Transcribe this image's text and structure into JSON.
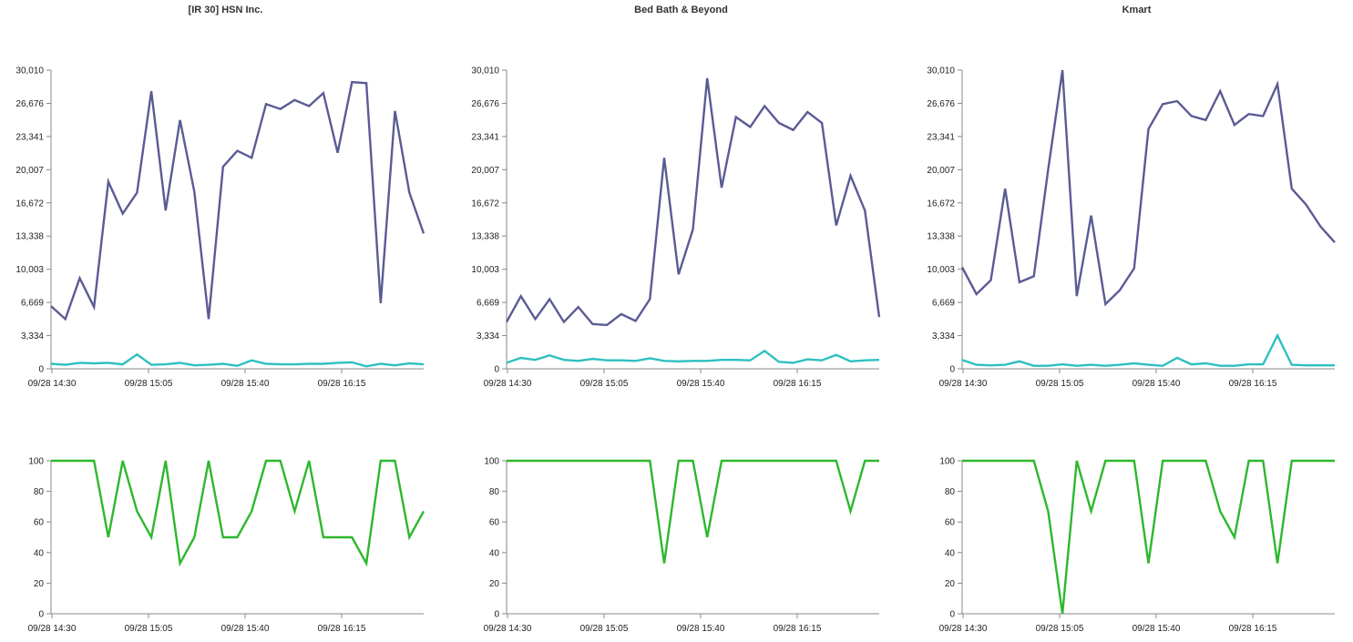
{
  "chart_data": [
    {
      "title": "[IR 30] HSN Inc.",
      "type": "line",
      "x_ticks": [
        "09/28 14:30",
        "09/28 15:05",
        "09/28 15:40",
        "09/28 16:15"
      ],
      "top": {
        "ylim": [
          0,
          30010
        ],
        "y_ticks": [
          "0",
          "3,334",
          "6,669",
          "10,003",
          "13,338",
          "16,672",
          "20,007",
          "23,341",
          "26,676",
          "30,010"
        ],
        "series": [
          {
            "color": "#5b5b95",
            "values": [
              6300,
              5000,
              9100,
              6200,
              18800,
              15600,
              17700,
              27900,
              15900,
              25000,
              17800,
              5000,
              20300,
              21900,
              21200,
              26600,
              26100,
              27000,
              26400,
              27700,
              21700,
              28800,
              28700,
              6600,
              25900,
              17700,
              13600
            ]
          },
          {
            "color": "#2fbfbf",
            "values": [
              500,
              400,
              600,
              550,
              600,
              450,
              1450,
              400,
              450,
              600,
              350,
              400,
              500,
              300,
              850,
              500,
              450,
              450,
              500,
              500,
              600,
              650,
              250,
              500,
              350,
              550,
              450
            ]
          }
        ]
      },
      "bottom": {
        "ylim": [
          0,
          100
        ],
        "y_ticks": [
          "0",
          "20",
          "40",
          "60",
          "80",
          "100"
        ],
        "series": [
          {
            "color": "#2db82d",
            "values": [
              100,
              100,
              100,
              100,
              50,
              100,
              67,
              50,
              100,
              33,
              50,
              100,
              50,
              50,
              67,
              100,
              100,
              67,
              100,
              50,
              50,
              50,
              33,
              100,
              100,
              50,
              67
            ]
          }
        ]
      }
    },
    {
      "title": "Bed Bath & Beyond",
      "type": "line",
      "x_ticks": [
        "09/28 14:30",
        "09/28 15:05",
        "09/28 15:40",
        "09/28 16:15"
      ],
      "top": {
        "ylim": [
          0,
          30010
        ],
        "y_ticks": [
          "0",
          "3,334",
          "6,669",
          "10,003",
          "13,338",
          "16,672",
          "20,007",
          "23,341",
          "26,676",
          "30,010"
        ],
        "series": [
          {
            "color": "#5b5b95",
            "values": [
              4700,
              7300,
              5000,
              7000,
              4700,
              6200,
              4500,
              4400,
              5500,
              4800,
              7000,
              21200,
              9500,
              14000,
              29200,
              18200,
              25300,
              24300,
              26400,
              24700,
              24000,
              25800,
              24700,
              14400,
              19400,
              15900,
              5200
            ]
          },
          {
            "color": "#2fbfbf",
            "values": [
              600,
              1100,
              900,
              1350,
              900,
              800,
              1000,
              850,
              850,
              800,
              1050,
              800,
              750,
              800,
              800,
              900,
              900,
              850,
              1800,
              700,
              600,
              950,
              850,
              1400,
              750,
              850,
              900
            ]
          }
        ]
      },
      "bottom": {
        "ylim": [
          0,
          100
        ],
        "y_ticks": [
          "0",
          "20",
          "40",
          "60",
          "80",
          "100"
        ],
        "series": [
          {
            "color": "#2db82d",
            "values": [
              100,
              100,
              100,
              100,
              100,
              100,
              100,
              100,
              100,
              100,
              100,
              33,
              100,
              100,
              50,
              100,
              100,
              100,
              100,
              100,
              100,
              100,
              100,
              100,
              67,
              100,
              100
            ]
          }
        ]
      }
    },
    {
      "title": "Kmart",
      "type": "line",
      "x_ticks": [
        "09/28 14:30",
        "09/28 15:05",
        "09/28 15:40",
        "09/28 16:15"
      ],
      "top": {
        "ylim": [
          0,
          30010
        ],
        "y_ticks": [
          "0",
          "3,334",
          "6,669",
          "10,003",
          "13,338",
          "16,672",
          "20,007",
          "23,341",
          "26,676",
          "30,010"
        ],
        "series": [
          {
            "color": "#5b5b95",
            "values": [
              10200,
              7500,
              8900,
              18100,
              8700,
              9300,
              20000,
              30000,
              7300,
              15400,
              6500,
              7900,
              10100,
              24100,
              26600,
              26900,
              25400,
              25000,
              27900,
              24500,
              25600,
              25400,
              28600,
              18100,
              16500,
              14300,
              12700
            ]
          },
          {
            "color": "#2fbfbf",
            "values": [
              900,
              400,
              350,
              400,
              750,
              300,
              300,
              450,
              300,
              400,
              300,
              400,
              550,
              400,
              300,
              1100,
              450,
              550,
              300,
              300,
              450,
              450,
              3350,
              400,
              350,
              350,
              350
            ]
          }
        ]
      },
      "bottom": {
        "ylim": [
          0,
          100
        ],
        "y_ticks": [
          "0",
          "20",
          "40",
          "60",
          "80",
          "100"
        ],
        "series": [
          {
            "color": "#2db82d",
            "values": [
              100,
              100,
              100,
              100,
              100,
              100,
              67,
              0,
              100,
              67,
              100,
              100,
              100,
              33,
              100,
              100,
              100,
              100,
              67,
              50,
              100,
              100,
              33,
              100,
              100,
              100,
              100
            ]
          }
        ]
      }
    }
  ]
}
